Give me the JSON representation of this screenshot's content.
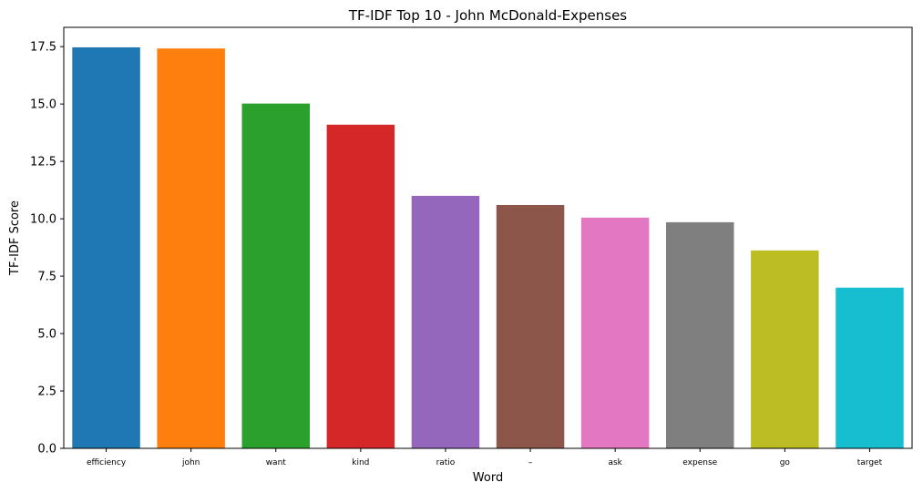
{
  "chart_data": {
    "type": "bar",
    "title": "TF-IDF Top 10 - John McDonald-Expenses",
    "xlabel": "Word",
    "ylabel": "TF-IDF Score",
    "categories": [
      "efficiency",
      "john",
      "want",
      "kind",
      "ratio",
      "–",
      "ask",
      "expense",
      "go",
      "target"
    ],
    "values": [
      17.47,
      17.42,
      15.02,
      14.1,
      11.0,
      10.6,
      10.05,
      9.85,
      8.62,
      7.0
    ],
    "colors": [
      "#1f77b4",
      "#ff7f0e",
      "#2ca02c",
      "#d62728",
      "#9467bd",
      "#8c564b",
      "#e377c2",
      "#7f7f7f",
      "#bcbd22",
      "#17becf"
    ],
    "ylim": [
      0,
      18.34
    ],
    "yticks": [
      0.0,
      2.5,
      5.0,
      7.5,
      10.0,
      12.5,
      15.0,
      17.5
    ],
    "ytick_labels": [
      "0.0",
      "2.5",
      "5.0",
      "7.5",
      "10.0",
      "12.5",
      "15.0",
      "17.5"
    ],
    "grid": false,
    "legend": "none"
  }
}
